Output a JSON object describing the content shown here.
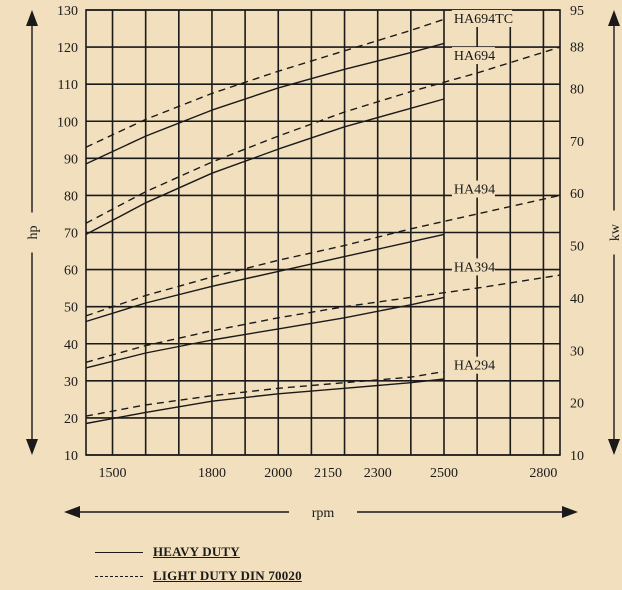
{
  "chart_data": {
    "type": "line",
    "xlabel": "rpm",
    "ylabel": "hp",
    "y2label": "kw",
    "xlim": [
      1420,
      2850
    ],
    "ylim": [
      10,
      130
    ],
    "y2lim": [
      10,
      95
    ],
    "x_ticks": [
      1500,
      1800,
      2000,
      2150,
      2300,
      2500,
      2800
    ],
    "y_ticks": [
      10,
      20,
      30,
      40,
      50,
      60,
      70,
      80,
      90,
      100,
      110,
      120,
      130
    ],
    "y2_ticks": [
      10,
      20,
      30,
      40,
      50,
      60,
      70,
      80,
      88,
      95
    ],
    "grid": true,
    "series": [
      {
        "name": "HA694TC",
        "style": "heavy",
        "x": [
          1420,
          1600,
          1800,
          2000,
          2200,
          2400,
          2500
        ],
        "values": [
          88.5,
          96,
          103,
          109,
          114,
          118.5,
          121
        ]
      },
      {
        "name": "HA694TC",
        "style": "light",
        "x": [
          1420,
          1600,
          1800,
          2000,
          2200,
          2400,
          2500
        ],
        "values": [
          93,
          100.5,
          107.5,
          113.5,
          119,
          124.5,
          127.5
        ]
      },
      {
        "name": "HA694",
        "style": "heavy",
        "x": [
          1420,
          1600,
          1800,
          2000,
          2200,
          2400,
          2500
        ],
        "values": [
          69.5,
          78,
          86,
          92.5,
          98.5,
          103.5,
          106
        ]
      },
      {
        "name": "HA694",
        "style": "light",
        "x": [
          1420,
          1600,
          1800,
          2000,
          2200,
          2400,
          2600,
          2850
        ],
        "values": [
          72.5,
          81,
          89,
          96,
          102.5,
          108,
          113,
          120
        ]
      },
      {
        "name": "HA494",
        "style": "heavy",
        "x": [
          1420,
          1600,
          1800,
          2000,
          2200,
          2400,
          2500
        ],
        "values": [
          46,
          51,
          55.5,
          59.5,
          63.5,
          67.5,
          69.5
        ]
      },
      {
        "name": "HA494",
        "style": "light",
        "x": [
          1420,
          1600,
          1800,
          2000,
          2200,
          2400,
          2600,
          2850
        ],
        "values": [
          47.5,
          53,
          58,
          62.5,
          66.5,
          71,
          75,
          80
        ]
      },
      {
        "name": "HA394",
        "style": "heavy",
        "x": [
          1420,
          1600,
          1800,
          2000,
          2200,
          2400,
          2500
        ],
        "values": [
          33.5,
          37.5,
          41,
          44,
          47,
          50.5,
          52.5
        ]
      },
      {
        "name": "HA394",
        "style": "light",
        "x": [
          1420,
          1600,
          1800,
          2000,
          2200,
          2400,
          2600,
          2850
        ],
        "values": [
          35,
          39.5,
          43.5,
          47,
          50,
          52.5,
          55,
          58.5
        ]
      },
      {
        "name": "HA294",
        "style": "heavy",
        "x": [
          1420,
          1600,
          1800,
          2000,
          2200,
          2400,
          2500
        ],
        "values": [
          18.5,
          21.5,
          24.5,
          26.5,
          28,
          29.5,
          30.5
        ]
      },
      {
        "name": "HA294",
        "style": "light",
        "x": [
          1420,
          1600,
          1800,
          2000,
          2200,
          2400,
          2500
        ],
        "values": [
          20.5,
          23.5,
          26,
          28,
          29.5,
          31,
          32.5
        ]
      }
    ],
    "curve_labels": [
      {
        "text": "HA694TC",
        "x": 2530,
        "y": 126.5
      },
      {
        "text": "HA694",
        "x": 2530,
        "y": 116.5
      },
      {
        "text": "HA494",
        "x": 2530,
        "y": 80.5
      },
      {
        "text": "HA394",
        "x": 2530,
        "y": 59.5
      },
      {
        "text": "HA294",
        "x": 2530,
        "y": 33
      }
    ]
  },
  "legend": {
    "heavy_label": "HEAVY DUTY",
    "light_label": "LIGHT DUTY DIN 70020"
  }
}
